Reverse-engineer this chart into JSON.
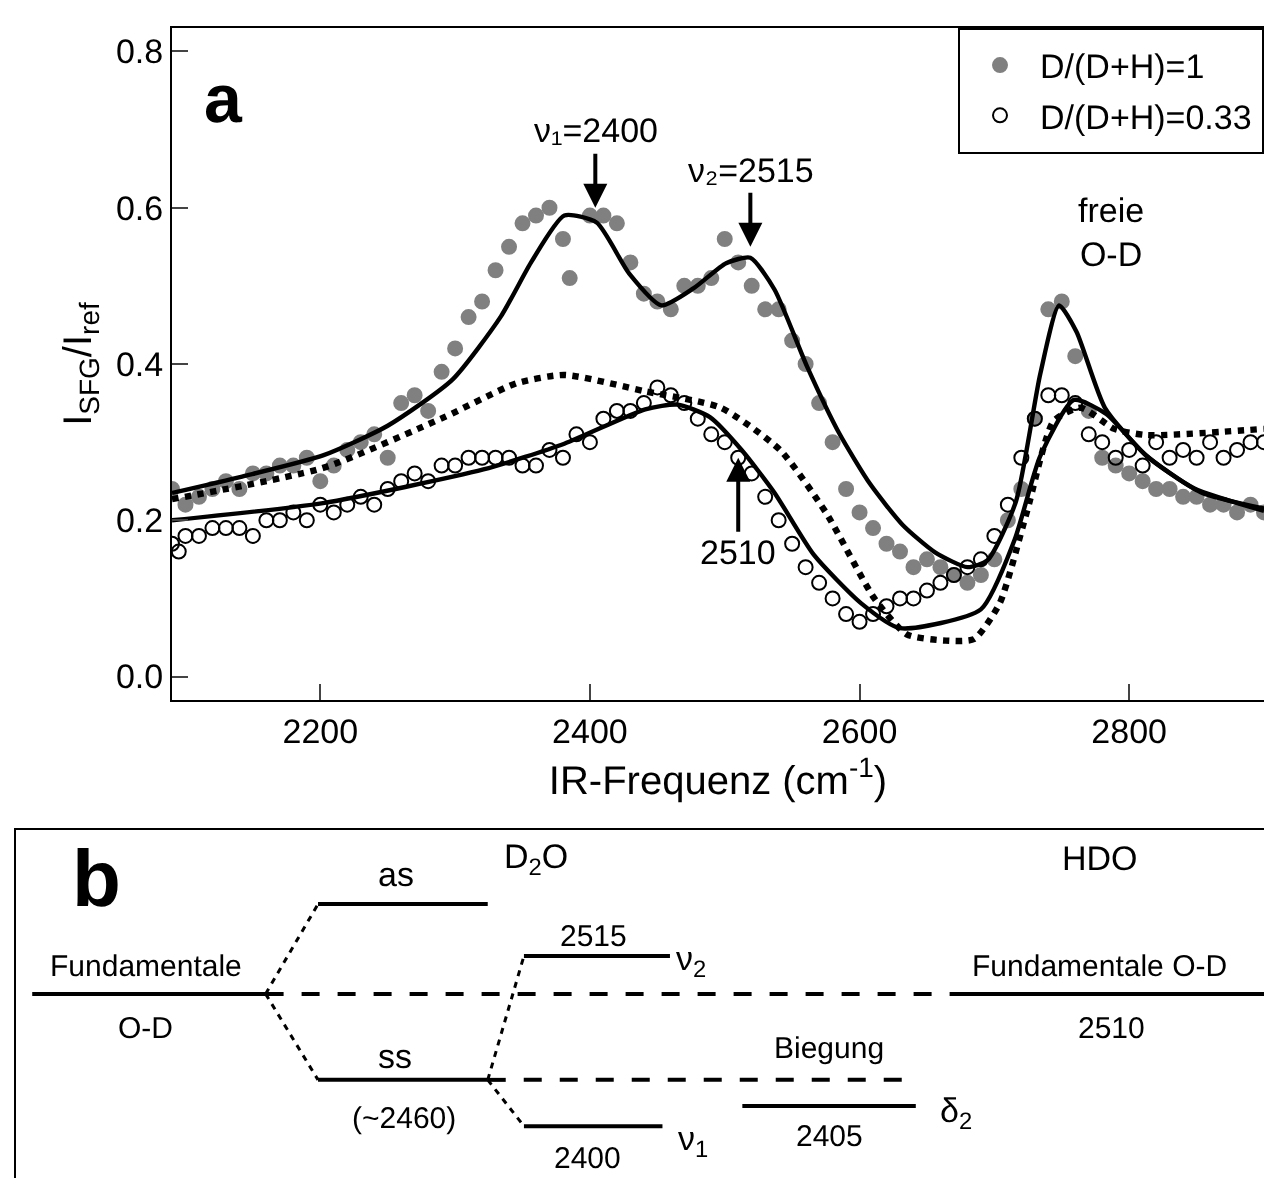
{
  "chart_data": [
    {
      "type": "scatter",
      "xlabel": "IR-Frequenz (cm$^{-1}$)",
      "ylabel": "I$_{SFG}$/I$_{ref}$",
      "xlim": [
        2090,
        2900
      ],
      "ylim": [
        -0.03,
        0.83
      ],
      "xticks": [
        2200,
        2400,
        2600,
        2800
      ],
      "yticks": [
        {
          "value": 0,
          "label": "0.0"
        },
        {
          "value": 0.2,
          "label": "0.2"
        },
        {
          "value": 0.4,
          "label": "0.4"
        },
        {
          "value": 0.6,
          "label": "0.6"
        },
        {
          "value": 0.8,
          "label": "0.8"
        }
      ],
      "legend": "top right",
      "annotations": [
        "a",
        {
          "text": "ν₁=2400",
          "x": 2404,
          "y": 0.6
        },
        {
          "text": "ν₂=2515",
          "x": 2519,
          "y": 0.55
        },
        {
          "text": "2510",
          "x": 2510,
          "y": 0.28
        },
        {
          "text": "freie\nO-D",
          "x": 2748,
          "y": 0.48
        }
      ],
      "series": [
        {
          "name": "D/(D+H)=1",
          "type": "scatter",
          "marker": "circle",
          "color": "#808080",
          "x": [
            2090,
            2100,
            2110,
            2120,
            2130,
            2140,
            2150,
            2160,
            2170,
            2180,
            2190,
            2200,
            2210,
            2220,
            2230,
            2240,
            2250,
            2260,
            2270,
            2280,
            2290,
            2300,
            2310,
            2320,
            2330,
            2340,
            2350,
            2360,
            2370,
            2380,
            2385,
            2400,
            2410,
            2420,
            2430,
            2440,
            2450,
            2460,
            2470,
            2480,
            2490,
            2500,
            2510,
            2520,
            2530,
            2540,
            2550,
            2560,
            2570,
            2580,
            2590,
            2600,
            2610,
            2620,
            2630,
            2640,
            2650,
            2660,
            2670,
            2680,
            2690,
            2700,
            2710,
            2720,
            2730,
            2740,
            2750,
            2760,
            2770,
            2780,
            2790,
            2800,
            2810,
            2820,
            2830,
            2840,
            2850,
            2860,
            2870,
            2880,
            2890,
            2900
          ],
          "values": [
            0.24,
            0.22,
            0.23,
            0.24,
            0.25,
            0.24,
            0.26,
            0.26,
            0.27,
            0.27,
            0.28,
            0.25,
            0.27,
            0.29,
            0.3,
            0.31,
            0.28,
            0.35,
            0.36,
            0.34,
            0.39,
            0.42,
            0.46,
            0.48,
            0.52,
            0.55,
            0.58,
            0.59,
            0.6,
            0.56,
            0.51,
            0.59,
            0.59,
            0.58,
            0.53,
            0.49,
            0.48,
            0.47,
            0.5,
            0.5,
            0.51,
            0.56,
            0.53,
            0.5,
            0.47,
            0.47,
            0.43,
            0.4,
            0.35,
            0.3,
            0.24,
            0.21,
            0.19,
            0.17,
            0.16,
            0.14,
            0.15,
            0.14,
            0.13,
            0.12,
            0.13,
            0.15,
            0.2,
            0.24,
            0.33,
            0.47,
            0.48,
            0.41,
            0.34,
            0.28,
            0.27,
            0.26,
            0.25,
            0.24,
            0.24,
            0.23,
            0.23,
            0.22,
            0.22,
            0.21,
            0.22,
            0.21
          ]
        },
        {
          "name": "D/(D+H)=0.33",
          "type": "scatter",
          "marker": "circle",
          "color": "#000000",
          "x": [
            2090,
            2095,
            2100,
            2110,
            2120,
            2130,
            2140,
            2150,
            2160,
            2170,
            2180,
            2190,
            2200,
            2210,
            2220,
            2230,
            2240,
            2250,
            2260,
            2270,
            2280,
            2290,
            2300,
            2310,
            2320,
            2330,
            2340,
            2350,
            2360,
            2370,
            2380,
            2390,
            2400,
            2410,
            2420,
            2430,
            2440,
            2450,
            2460,
            2470,
            2480,
            2490,
            2500,
            2510,
            2520,
            2530,
            2540,
            2550,
            2560,
            2570,
            2580,
            2590,
            2600,
            2610,
            2620,
            2630,
            2640,
            2650,
            2660,
            2670,
            2680,
            2690,
            2700,
            2710,
            2720,
            2730,
            2740,
            2750,
            2760,
            2770,
            2780,
            2790,
            2800,
            2810,
            2820,
            2830,
            2840,
            2850,
            2860,
            2870,
            2880,
            2890,
            2900
          ],
          "values": [
            0.17,
            0.16,
            0.18,
            0.18,
            0.19,
            0.19,
            0.19,
            0.18,
            0.2,
            0.2,
            0.21,
            0.2,
            0.22,
            0.21,
            0.22,
            0.23,
            0.22,
            0.24,
            0.25,
            0.26,
            0.25,
            0.27,
            0.27,
            0.28,
            0.28,
            0.28,
            0.28,
            0.27,
            0.27,
            0.29,
            0.28,
            0.31,
            0.3,
            0.33,
            0.34,
            0.34,
            0.35,
            0.37,
            0.36,
            0.35,
            0.33,
            0.31,
            0.3,
            0.28,
            0.26,
            0.23,
            0.2,
            0.17,
            0.14,
            0.12,
            0.1,
            0.08,
            0.07,
            0.08,
            0.09,
            0.1,
            0.1,
            0.11,
            0.12,
            0.13,
            0.14,
            0.15,
            0.18,
            0.22,
            0.28,
            0.33,
            0.36,
            0.36,
            0.35,
            0.31,
            0.3,
            0.28,
            0.29,
            0.27,
            0.3,
            0.28,
            0.29,
            0.28,
            0.3,
            0.28,
            0.29,
            0.3,
            0.3
          ]
        },
        {
          "type": "line",
          "marker": "none",
          "line_style": "solid",
          "color": "#000000",
          "x": [
            2090,
            2142,
            2202,
            2250,
            2298,
            2334,
            2357,
            2381,
            2405,
            2429,
            2453,
            2477,
            2501,
            2519,
            2537,
            2561,
            2585,
            2608,
            2632,
            2656,
            2680,
            2695,
            2716,
            2734,
            2748,
            2761,
            2782,
            2812,
            2848,
            2900
          ],
          "values": [
            0.235,
            0.256,
            0.283,
            0.321,
            0.38,
            0.461,
            0.532,
            0.59,
            0.581,
            0.516,
            0.475,
            0.497,
            0.529,
            0.536,
            0.495,
            0.397,
            0.311,
            0.246,
            0.194,
            0.159,
            0.14,
            0.149,
            0.224,
            0.387,
            0.475,
            0.441,
            0.344,
            0.284,
            0.241,
            0.212
          ]
        },
        {
          "type": "line",
          "marker": "none",
          "line_style": "solid",
          "color": "#000000",
          "x": [
            2090,
            2202,
            2321,
            2381,
            2441,
            2465,
            2489,
            2513,
            2537,
            2566,
            2601,
            2630,
            2690,
            2715,
            2734,
            2759,
            2783,
            2813,
            2853,
            2900
          ],
          "values": [
            0.2,
            0.222,
            0.265,
            0.298,
            0.342,
            0.348,
            0.332,
            0.289,
            0.235,
            0.156,
            0.094,
            0.062,
            0.086,
            0.175,
            0.282,
            0.354,
            0.336,
            0.282,
            0.236,
            0.215
          ]
        },
        {
          "type": "line",
          "marker": "none",
          "line_style": "dotted",
          "color": "#000000",
          "x": [
            2090,
            2202,
            2292,
            2345,
            2381,
            2441,
            2497,
            2541,
            2575,
            2611,
            2635,
            2664,
            2685,
            2704,
            2724,
            2744,
            2764,
            2789,
            2813,
            2900
          ],
          "values": [
            0.227,
            0.267,
            0.332,
            0.375,
            0.386,
            0.365,
            0.344,
            0.29,
            0.21,
            0.1,
            0.054,
            0.046,
            0.048,
            0.094,
            0.21,
            0.327,
            0.344,
            0.317,
            0.309,
            0.317
          ]
        }
      ]
    },
    {
      "type": "other",
      "annotations": [
        "b",
        "as",
        "D$_{2}$O",
        "HDO",
        "Fundamentale",
        "O-D",
        "2515",
        "ν$_{2}$",
        "Fundamentale O-D",
        "2510",
        "ss",
        "Biegung",
        "(~2460)",
        "ν$_{1}$",
        "2400",
        "2405",
        "δ$_{2}$"
      ]
    }
  ]
}
